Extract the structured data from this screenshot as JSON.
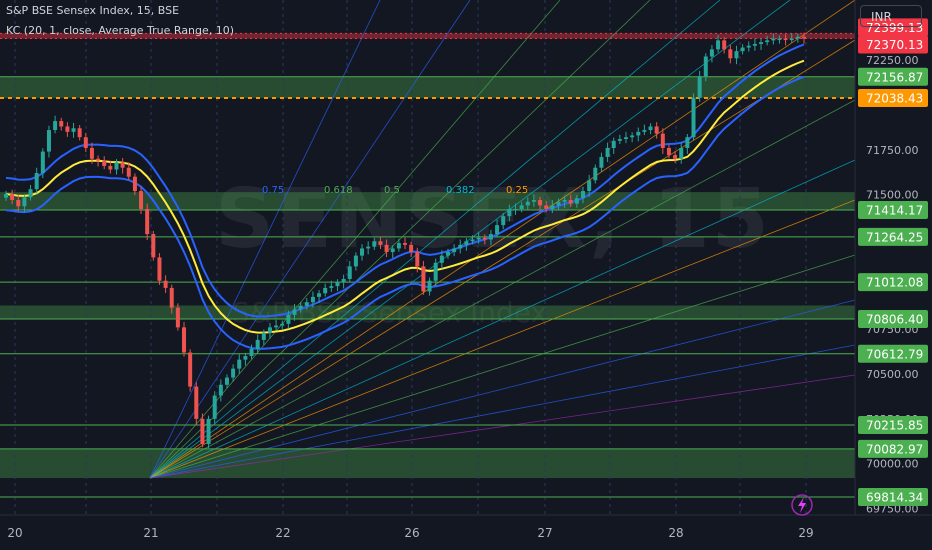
{
  "header": {
    "title": "S&P BSE Sensex Index, 15, BSE",
    "indicator": "KC (20, 1, close, Average True Range, 10)"
  },
  "currency": "INR",
  "watermark": {
    "symbol": "SENSEX, 15",
    "name": "S&P BSE Sensex Index"
  },
  "colors": {
    "up": "#26a69a",
    "down": "#ef5350",
    "level": "#4caf50",
    "zone": "rgba(76,175,80,0.35)",
    "resistance_zone": "rgba(242,54,69,0.45)",
    "dotted_orange": "#ff9800",
    "kc_mid": "#ffeb3b",
    "kc_band": "#2962ff"
  },
  "chart_data": {
    "type": "candlestick",
    "symbol": "S&P BSE Sensex Index",
    "interval": "15",
    "x_ticks": [
      "20",
      "21",
      "22",
      "26",
      "27",
      "28",
      "29"
    ],
    "y_ticks": [
      72250.0,
      71750.0,
      71500.0,
      70750.0,
      70500.0,
      70250.0,
      70000.0,
      69750.0
    ],
    "ylim": [
      69714,
      72585
    ],
    "levels": [
      {
        "value": 72399.13,
        "label": "72399.13",
        "color": "#f23645"
      },
      {
        "value": 72370.13,
        "label": "72370.13",
        "color": "#f23645"
      },
      {
        "value": 72156.87,
        "label": "72156.87",
        "color": "#4caf50"
      },
      {
        "value": 72038.43,
        "label": "72038.43",
        "color": "#ff9800"
      },
      {
        "value": 71414.17,
        "label": "71414.17",
        "color": "#4caf50"
      },
      {
        "value": 71264.25,
        "label": "71264.25",
        "color": "#4caf50"
      },
      {
        "value": 71012.08,
        "label": "71012.08",
        "color": "#4caf50"
      },
      {
        "value": 70806.4,
        "label": "70806.40",
        "color": "#4caf50"
      },
      {
        "value": 70612.79,
        "label": "70612.79",
        "color": "#4caf50"
      },
      {
        "value": 70215.85,
        "label": "70215.85",
        "color": "#4caf50"
      },
      {
        "value": 70082.97,
        "label": "70082.97",
        "color": "#4caf50"
      },
      {
        "value": 69814.34,
        "label": "69814.34",
        "color": "#4caf50"
      }
    ],
    "zones": [
      {
        "low": 72370.13,
        "high": 72399.13,
        "kind": "resistance"
      },
      {
        "low": 72038.43,
        "high": 72156.87,
        "kind": "support"
      },
      {
        "low": 71414.17,
        "high": 71514.0,
        "kind": "support"
      },
      {
        "low": 70806.4,
        "high": 70882.0,
        "kind": "support"
      },
      {
        "low": 69920.0,
        "high": 70082.97,
        "kind": "support"
      }
    ],
    "fib_labels": [
      {
        "label": "0.75",
        "color": "#2962ff"
      },
      {
        "label": "0.618",
        "color": "#4caf50"
      },
      {
        "label": "0.5",
        "color": "#4caf50"
      },
      {
        "label": "0.382",
        "color": "#00bcd4"
      },
      {
        "label": "0.25",
        "color": "#ff9800"
      }
    ],
    "closes": [
      71503,
      71470,
      71435,
      71485,
      71530,
      71620,
      71740,
      71860,
      71910,
      71880,
      71850,
      71870,
      71820,
      71760,
      71700,
      71690,
      71660,
      71640,
      71680,
      71650,
      71600,
      71520,
      71420,
      71280,
      71150,
      71020,
      70980,
      70870,
      70760,
      70620,
      70430,
      70250,
      70110,
      70250,
      70380,
      70440,
      70480,
      70530,
      70580,
      70600,
      70640,
      70690,
      70730,
      70760,
      70770,
      70780,
      70830,
      70860,
      70880,
      70900,
      70930,
      70950,
      70980,
      70990,
      71010,
      71030,
      71100,
      71160,
      71200,
      71210,
      71240,
      71220,
      71180,
      71200,
      71230,
      71220,
      71180,
      71100,
      70960,
      71020,
      71120,
      71160,
      71180,
      71200,
      71220,
      71240,
      71250,
      71260,
      71250,
      71280,
      71330,
      71380,
      71420,
      71420,
      71440,
      71460,
      71470,
      71440,
      71420,
      71440,
      71460,
      71470,
      71450,
      71480,
      71520,
      71580,
      71650,
      71710,
      71760,
      71800,
      71810,
      71820,
      71830,
      71850,
      71860,
      71880,
      71840,
      71760,
      71720,
      71700,
      71760,
      71820,
      72040,
      72160,
      72270,
      72310,
      72360,
      72310,
      72260,
      72300,
      72320,
      72330,
      72340,
      72350,
      72360,
      72370,
      72370,
      72365,
      72370,
      72380,
      72370
    ]
  }
}
